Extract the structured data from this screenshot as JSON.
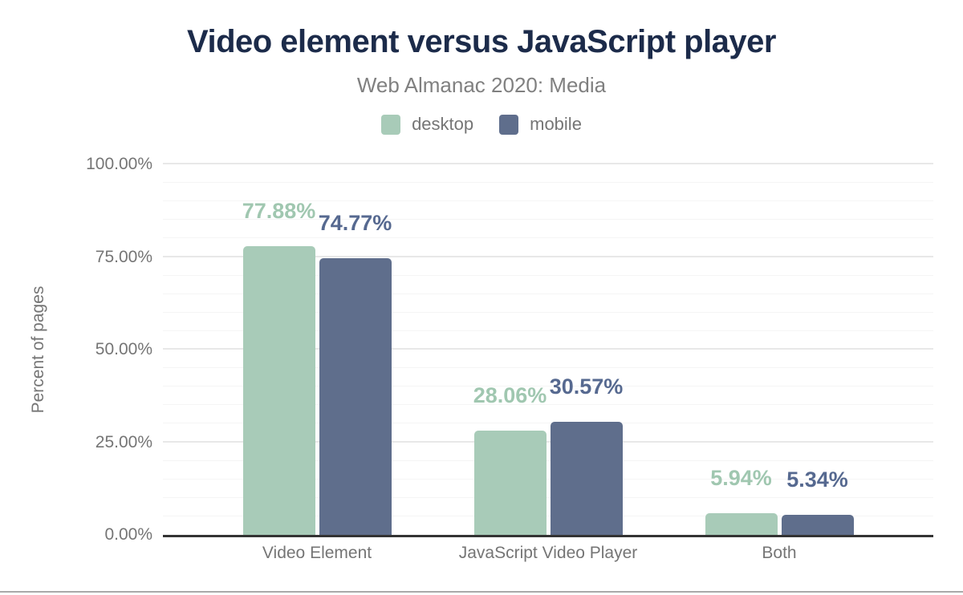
{
  "chart_data": {
    "type": "bar",
    "title": "Video element versus JavaScript player",
    "subtitle": "Web Almanac 2020: Media",
    "ylabel": "Percent of pages",
    "categories": [
      "Video Element",
      "JavaScript Video Player",
      "Both"
    ],
    "series": [
      {
        "name": "desktop",
        "color": "#a8cbb8",
        "label_color": "#a0c7b0",
        "values": [
          77.88,
          28.06,
          5.94
        ],
        "labels": [
          "77.88%",
          "28.06%",
          "5.94%"
        ]
      },
      {
        "name": "mobile",
        "color": "#5f6e8c",
        "label_color": "#566990",
        "values": [
          74.77,
          30.57,
          5.34
        ],
        "labels": [
          "74.77%",
          "30.57%",
          "5.34%"
        ]
      }
    ],
    "ylim": [
      0,
      100
    ],
    "yticks": [
      {
        "pct": 0,
        "label": "0.00%"
      },
      {
        "pct": 25,
        "label": "25.00%"
      },
      {
        "pct": 50,
        "label": "50.00%"
      },
      {
        "pct": 75,
        "label": "75.00%"
      },
      {
        "pct": 100,
        "label": "100.00%"
      }
    ],
    "grid": {
      "minor_step": 5,
      "major_step": 25
    },
    "legend_position": "top-center"
  }
}
